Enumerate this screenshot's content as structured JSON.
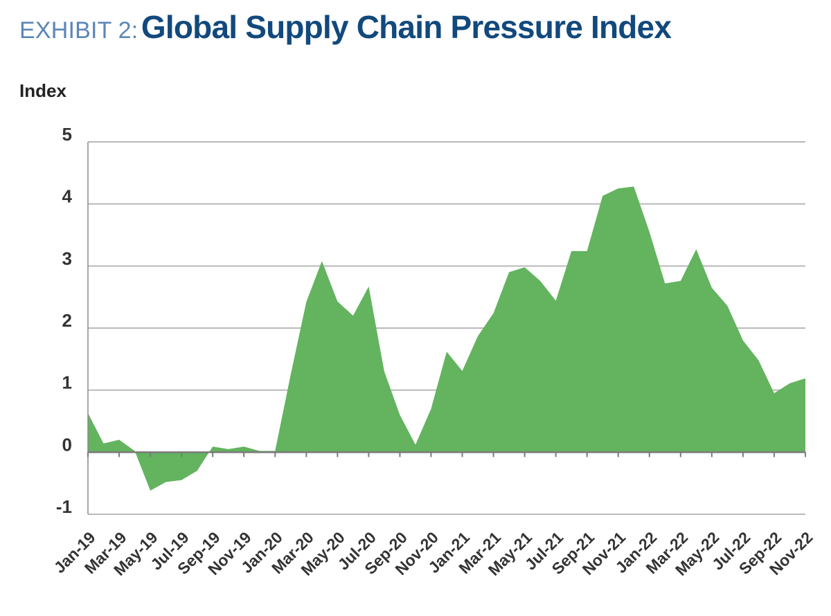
{
  "exhibit": {
    "prefix": "EXHIBIT 2:",
    "title": "Global Supply Chain Pressure Index"
  },
  "chart_data": {
    "type": "area",
    "title": "Global Supply Chain Pressure Index",
    "ylabel": "Index",
    "xlabel": "",
    "ylim": [
      -1,
      5
    ],
    "yticks": [
      5,
      4,
      3,
      2,
      1,
      0,
      -1
    ],
    "fill_color": "#63b35f",
    "grid": true,
    "tick_labels": [
      "Jan-19",
      "Mar-19",
      "May-19",
      "Jul-19",
      "Sep-19",
      "Nov-19",
      "Jan-20",
      "Mar-20",
      "May-20",
      "Jul-20",
      "Sep-20",
      "Nov-20",
      "Jan-21",
      "Mar-21",
      "May-21",
      "Jul-21",
      "Sep-21",
      "Nov-21",
      "Jan-22",
      "Mar-22",
      "May-22",
      "Jul-22",
      "Sep-22",
      "Nov-22"
    ],
    "x": [
      "Jan-19",
      "Feb-19",
      "Mar-19",
      "Apr-19",
      "May-19",
      "Jun-19",
      "Jul-19",
      "Aug-19",
      "Sep-19",
      "Oct-19",
      "Nov-19",
      "Dec-19",
      "Jan-20",
      "Feb-20",
      "Mar-20",
      "Apr-20",
      "May-20",
      "Jun-20",
      "Jul-20",
      "Aug-20",
      "Sep-20",
      "Oct-20",
      "Nov-20",
      "Dec-20",
      "Jan-21",
      "Feb-21",
      "Mar-21",
      "Apr-21",
      "May-21",
      "Jun-21",
      "Jul-21",
      "Aug-21",
      "Sep-21",
      "Oct-21",
      "Nov-21",
      "Dec-21",
      "Jan-22",
      "Feb-22",
      "Mar-22",
      "Apr-22",
      "May-22",
      "Jun-22",
      "Jul-22",
      "Aug-22",
      "Sep-22",
      "Oct-22",
      "Nov-22"
    ],
    "values": [
      0.63,
      0.14,
      0.2,
      0.02,
      -0.62,
      -0.48,
      -0.45,
      -0.3,
      0.09,
      0.05,
      0.09,
      0.02,
      0.02,
      1.25,
      2.42,
      3.08,
      2.43,
      2.2,
      2.67,
      1.3,
      0.6,
      0.12,
      0.7,
      1.62,
      1.31,
      1.87,
      2.24,
      2.9,
      2.98,
      2.76,
      2.44,
      3.24,
      3.24,
      4.13,
      4.25,
      4.28,
      3.55,
      2.72,
      2.76,
      3.27,
      2.65,
      2.36,
      1.8,
      1.48,
      0.95,
      1.11,
      1.19
    ]
  }
}
